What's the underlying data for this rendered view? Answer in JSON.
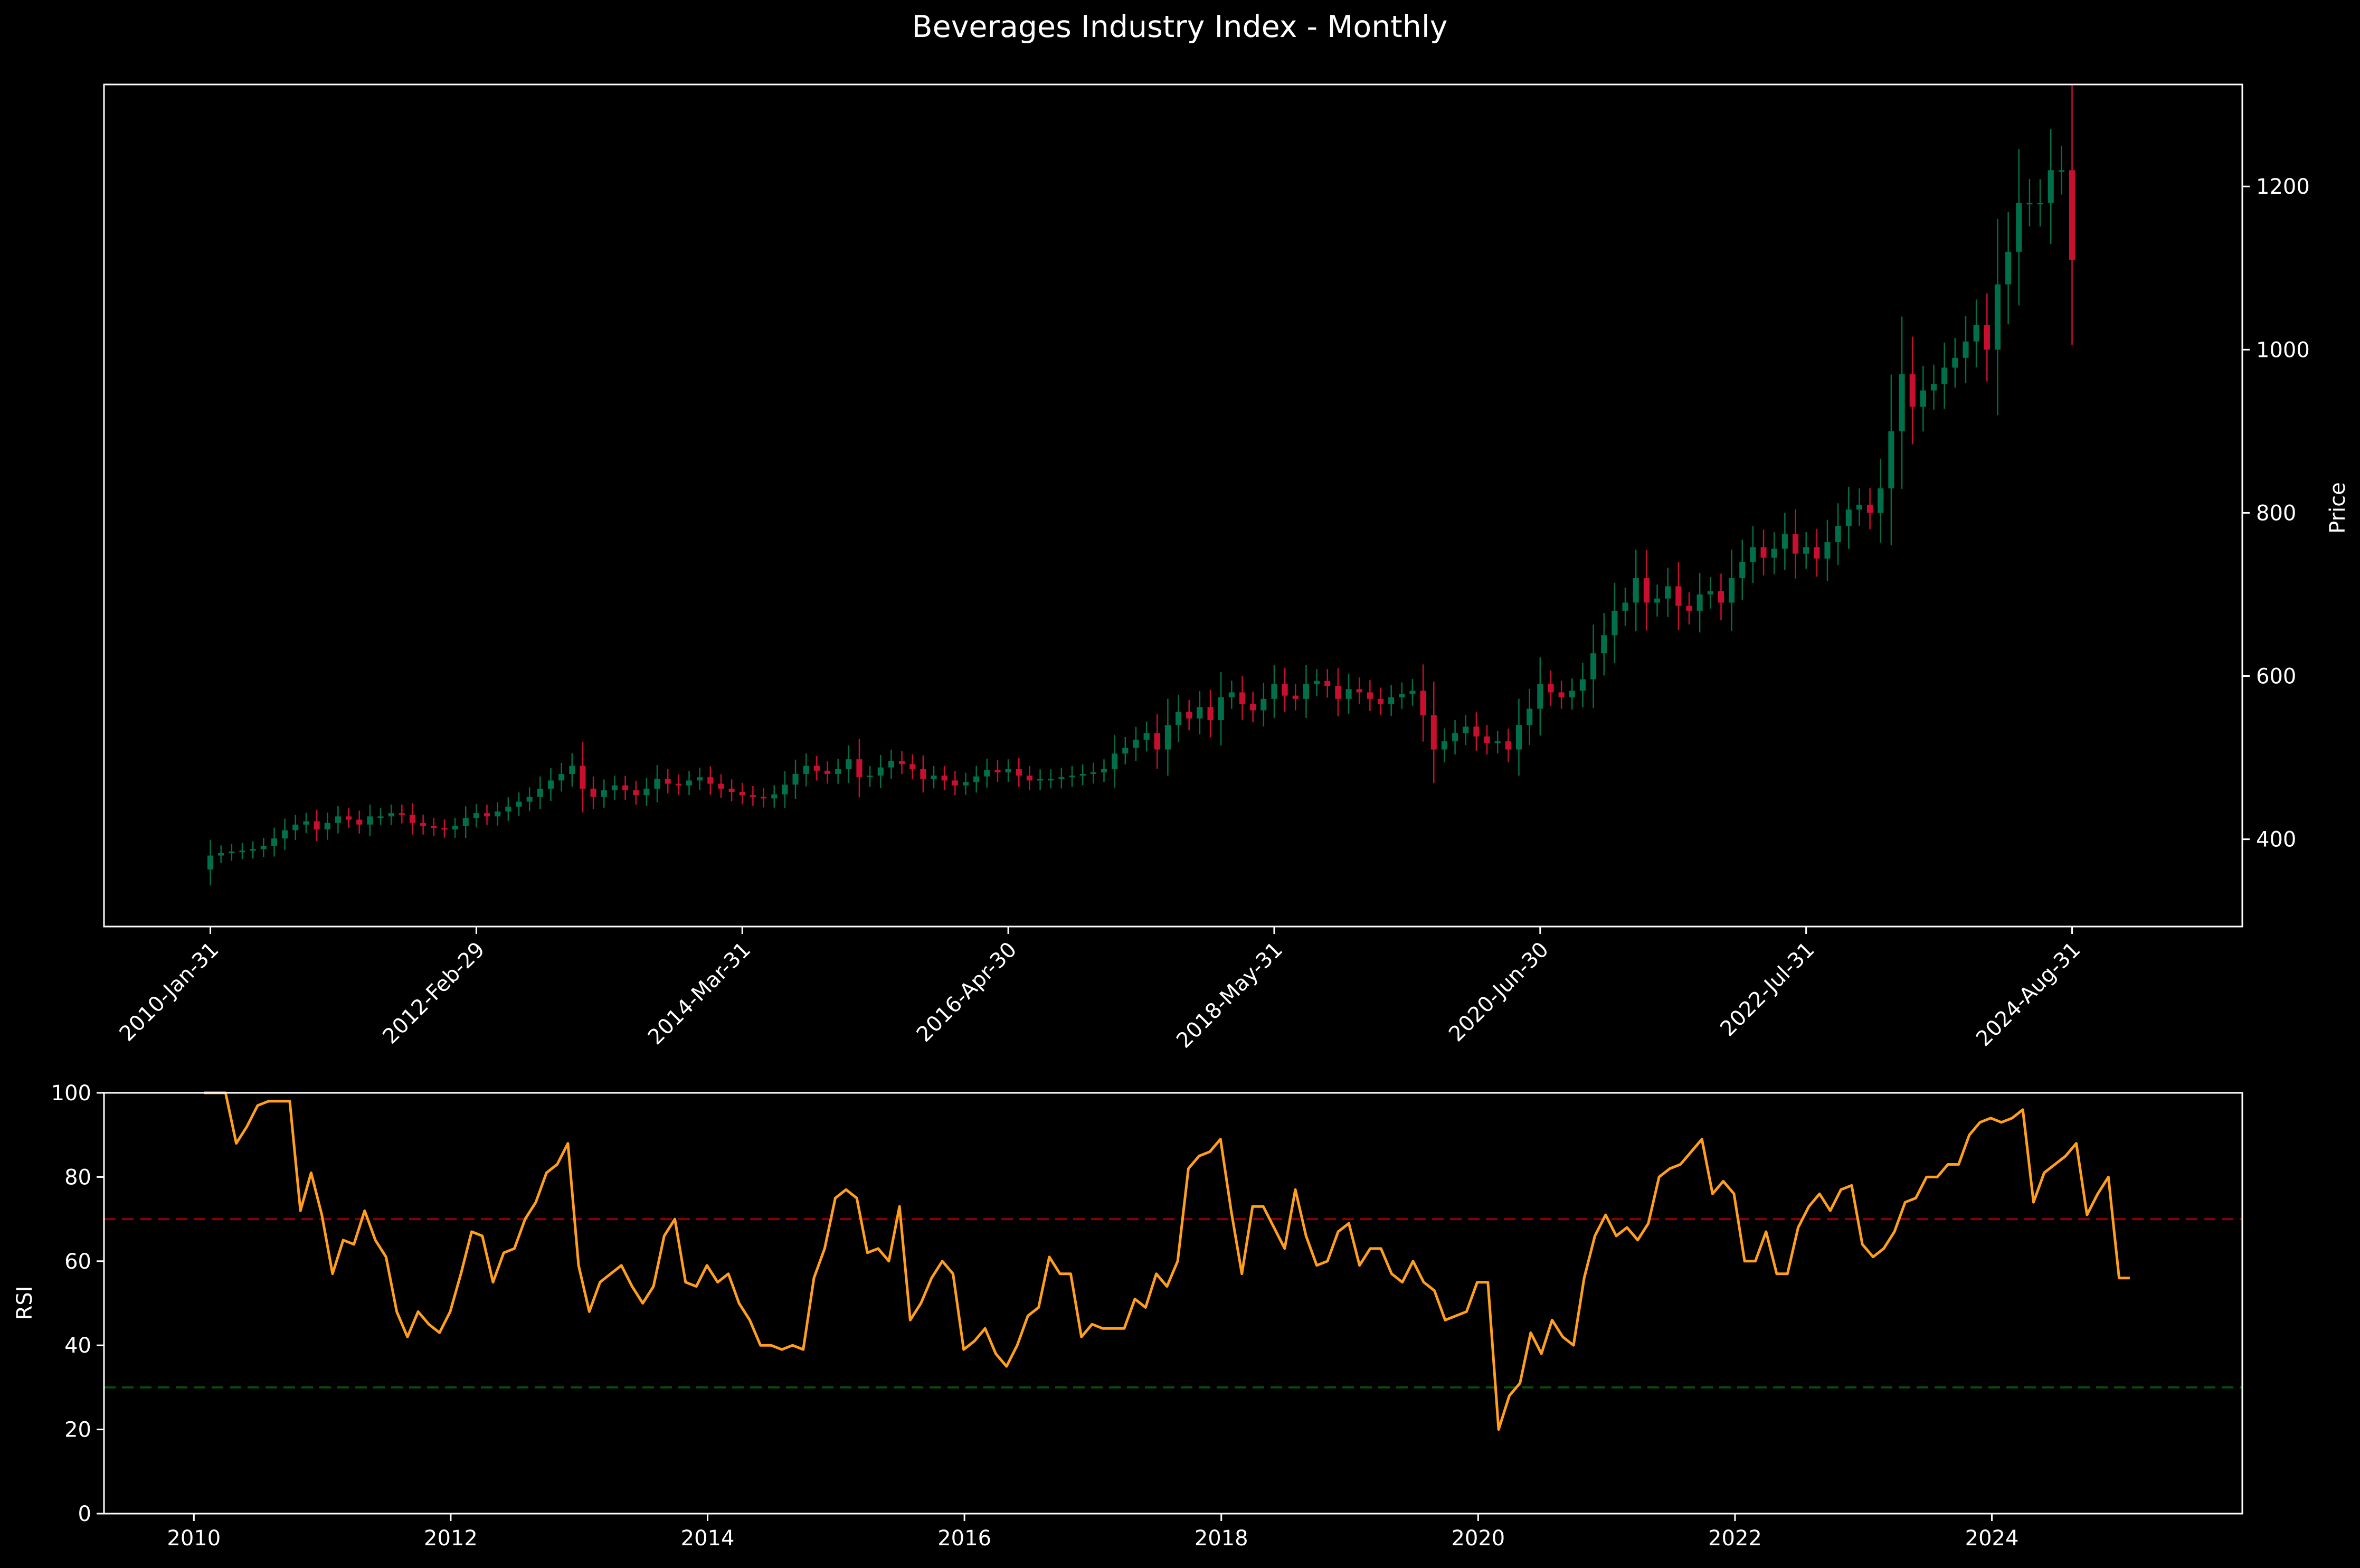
{
  "colors": {
    "background": "#000000",
    "up": "#00704a",
    "down": "#c8102e",
    "rsi": "#ff9f1c",
    "overbought": "#8b0000",
    "oversold": "#0a4d0a",
    "axis": "#ffffff"
  },
  "chart_data": [
    {
      "type": "candlestick",
      "title": "Beverages Industry Index - Monthly",
      "ylabel": "Price",
      "ylim": [
        293,
        1325
      ],
      "yticks": [
        400,
        600,
        800,
        1000,
        1200
      ],
      "x_start": "2010-01",
      "x_ticklabels": [
        "2010-Jan-31",
        "2012-Feb-29",
        "2014-Mar-31",
        "2016-Apr-30",
        "2018-May-31",
        "2020-Jun-30",
        "2022-Jul-31",
        "2024-Aug-31"
      ],
      "x_tick_months": [
        0,
        25,
        50,
        75,
        100,
        125,
        150,
        175
      ],
      "x_span_months": [
        -10,
        191
      ],
      "grid": false,
      "close": [
        380,
        383,
        385,
        386,
        388,
        392,
        401,
        411,
        418,
        422,
        412,
        420,
        428,
        424,
        418,
        428,
        428,
        432,
        430,
        420,
        416,
        414,
        412,
        416,
        426,
        432,
        428,
        434,
        440,
        446,
        452,
        462,
        472,
        480,
        490,
        462,
        452,
        460,
        466,
        460,
        454,
        462,
        474,
        468,
        466,
        472,
        476,
        468,
        462,
        458,
        454,
        452,
        450,
        455,
        467,
        480,
        490,
        484,
        480,
        486,
        498,
        476,
        478,
        488,
        496,
        492,
        486,
        474,
        478,
        472,
        466,
        470,
        477,
        485,
        482,
        486,
        478,
        472,
        474,
        474,
        476,
        478,
        480,
        482,
        486,
        505,
        512,
        522,
        530,
        510,
        540,
        556,
        548,
        562,
        546,
        574,
        580,
        566,
        558,
        572,
        590,
        576,
        572,
        590,
        594,
        588,
        572,
        584,
        580,
        572,
        566,
        574,
        578,
        582,
        552,
        510,
        520,
        530,
        538,
        526,
        518,
        520,
        510,
        540,
        560,
        590,
        580,
        574,
        582,
        596,
        628,
        650,
        680,
        690,
        720,
        690,
        695,
        710,
        686,
        680,
        700,
        704,
        690,
        720,
        740,
        758,
        745,
        756,
        774,
        750,
        758,
        744,
        764,
        784,
        804,
        810,
        800,
        830,
        900,
        970,
        930,
        950,
        958,
        978,
        990,
        1010,
        1030,
        1000,
        1080,
        1120,
        1180,
        1180,
        1180,
        1220,
        1220,
        1110
      ]
    },
    {
      "type": "line",
      "ylabel": "RSI",
      "ylim": [
        0,
        100
      ],
      "yticks": [
        0,
        20,
        40,
        60,
        80,
        100
      ],
      "xlim": [
        2009.3,
        2025.95
      ],
      "xticks": [
        2010,
        2012,
        2014,
        2016,
        2018,
        2020,
        2022,
        2024
      ],
      "overbought": 70,
      "oversold": 30,
      "grid": false,
      "series": [
        {
          "x_start": 2010.08,
          "x_step": 0.0833,
          "values": [
            100,
            100,
            100,
            88,
            92,
            97,
            98,
            98,
            98,
            72,
            81,
            71,
            57,
            65,
            64,
            72,
            65,
            61,
            48,
            42,
            48,
            45,
            43,
            48,
            57,
            67,
            66,
            55,
            62,
            63,
            70,
            74,
            81,
            83,
            88,
            59,
            48,
            55,
            57,
            59,
            54,
            50,
            54,
            66,
            70,
            55,
            54,
            59,
            55,
            57,
            50,
            46,
            40,
            40,
            39,
            40,
            39,
            56,
            63,
            75,
            77,
            75,
            62,
            63,
            60,
            73,
            46,
            50,
            56,
            60,
            57,
            39,
            41,
            44,
            38,
            35,
            40,
            47,
            49,
            61,
            57,
            57,
            42,
            45,
            44,
            44,
            44,
            51,
            49,
            57,
            54,
            60,
            82,
            85,
            86,
            89,
            72,
            57,
            73,
            73,
            68,
            63,
            77,
            66,
            59,
            60,
            67,
            69,
            59,
            63,
            63,
            57,
            55,
            60,
            55,
            53,
            46,
            47,
            48,
            55,
            55,
            20,
            28,
            31,
            43,
            38,
            46,
            42,
            40,
            56,
            66,
            71,
            66,
            68,
            65,
            69,
            80,
            82,
            83,
            86,
            89,
            76,
            79,
            76,
            60,
            60,
            67,
            57,
            57,
            68,
            73,
            76,
            72,
            77,
            78,
            64,
            61,
            63,
            67,
            74,
            75,
            80,
            80,
            83,
            83,
            90,
            93,
            94,
            93,
            94,
            96,
            74,
            81,
            83,
            85,
            88,
            71,
            76,
            80,
            56,
            56
          ]
        }
      ]
    }
  ]
}
